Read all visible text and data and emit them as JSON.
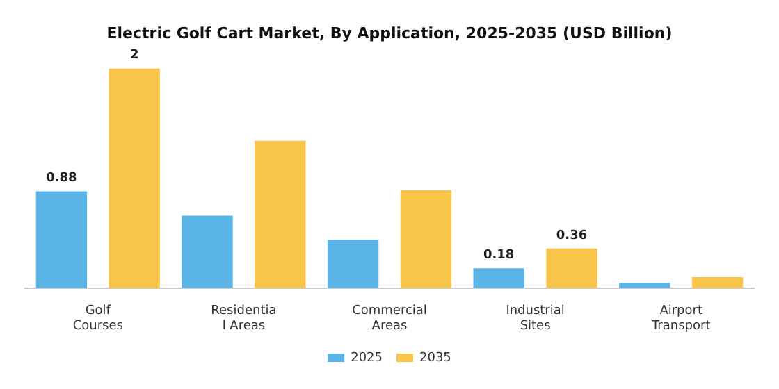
{
  "chart_data": {
    "type": "bar",
    "title": "Electric Golf Cart Market, By Application, 2025-2035 (USD Billion)",
    "categories": [
      "Golf\nCourses",
      "Residentia\nl Areas",
      "Commercial\nAreas",
      "Industrial\nSites",
      "Airport\nTransport"
    ],
    "series": [
      {
        "name": "2025",
        "color": "#5ab4e5",
        "values": [
          0.88,
          0.66,
          0.44,
          0.18,
          0.05
        ],
        "value_labels": [
          "0.88",
          null,
          null,
          "0.18",
          null
        ]
      },
      {
        "name": "2035",
        "color": "#f9c44a",
        "values": [
          2,
          1.34,
          0.89,
          0.36,
          0.1
        ],
        "value_labels": [
          "2",
          null,
          null,
          "0.36",
          null
        ]
      }
    ],
    "legend": "bottom",
    "grid": false
  }
}
